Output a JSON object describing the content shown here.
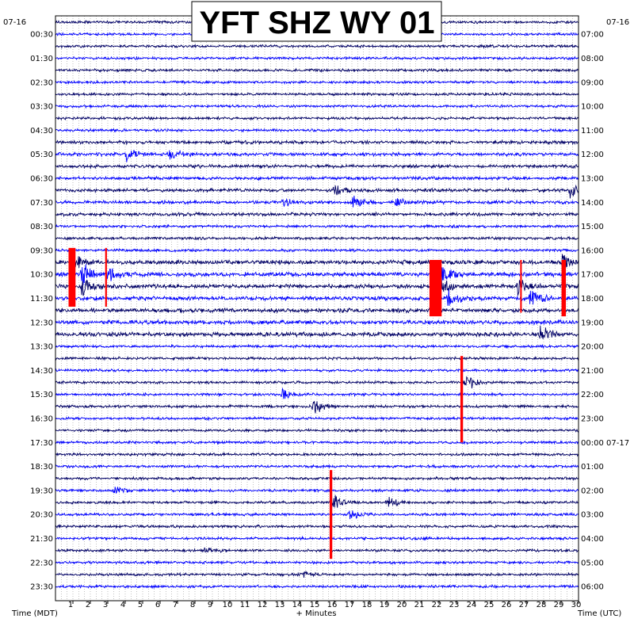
{
  "chart_data": {
    "type": "line",
    "title": "YFT SHZ WY 01",
    "date_left": "07-16",
    "date_right": "07-16",
    "xlabel": "+ Minutes",
    "xlabel_left": "Time (MDT)",
    "xlabel_right": "Time (UTC)",
    "xlim": [
      0,
      30
    ],
    "x_ticks": [
      "1",
      "2",
      "3",
      "4",
      "5",
      "6",
      "7",
      "8",
      "9",
      "10",
      "11",
      "12",
      "13",
      "14",
      "15",
      "16",
      "17",
      "18",
      "19",
      "20",
      "21",
      "22",
      "23",
      "24",
      "25",
      "26",
      "27",
      "28",
      "29",
      "30"
    ],
    "left_labels": [
      "00:30",
      "01:30",
      "02:30",
      "03:30",
      "04:30",
      "05:30",
      "06:30",
      "07:30",
      "08:30",
      "09:30",
      "10:30",
      "11:30",
      "12:30",
      "13:30",
      "14:30",
      "15:30",
      "16:30",
      "17:30",
      "18:30",
      "19:30",
      "20:30",
      "21:30",
      "22:30",
      "23:30"
    ],
    "right_labels": [
      "07:00",
      "08:00",
      "09:00",
      "10:00",
      "11:00",
      "12:00",
      "13:00",
      "14:00",
      "15:00",
      "16:00",
      "17:00",
      "18:00",
      "19:00",
      "20:00",
      "21:00",
      "22:00",
      "23:00",
      "00:00 07-17",
      "01:00",
      "02:00",
      "03:00",
      "04:00",
      "05:00",
      "06:00"
    ],
    "trace_count": 48,
    "trace_colors": [
      "#000066",
      "#0000ff"
    ],
    "clip_color": "#ff0000",
    "grid": true,
    "events": [
      {
        "trace": 11,
        "minute": 4.0,
        "amp": 10
      },
      {
        "trace": 11,
        "minute": 6.5,
        "amp": 8
      },
      {
        "trace": 14,
        "minute": 16.0,
        "amp": 9
      },
      {
        "trace": 14,
        "minute": 29.5,
        "amp": 12
      },
      {
        "trace": 15,
        "minute": 13.0,
        "amp": 8
      },
      {
        "trace": 15,
        "minute": 17.0,
        "amp": 10
      },
      {
        "trace": 15,
        "minute": 19.5,
        "amp": 7
      },
      {
        "trace": 20,
        "minute": 1.0,
        "amp": 13
      },
      {
        "trace": 20,
        "minute": 29.0,
        "amp": 12
      },
      {
        "trace": 21,
        "minute": 1.5,
        "amp": 18
      },
      {
        "trace": 21,
        "minute": 3.0,
        "amp": 12
      },
      {
        "trace": 21,
        "minute": 22.0,
        "amp": 18
      },
      {
        "trace": 22,
        "minute": 1.5,
        "amp": 16
      },
      {
        "trace": 22,
        "minute": 22.0,
        "amp": 18
      },
      {
        "trace": 22,
        "minute": 26.5,
        "amp": 12
      },
      {
        "trace": 23,
        "minute": 27.2,
        "amp": 14
      },
      {
        "trace": 23,
        "minute": 22.5,
        "amp": 14
      },
      {
        "trace": 26,
        "minute": 27.8,
        "amp": 12
      },
      {
        "trace": 30,
        "minute": 23.5,
        "amp": 14
      },
      {
        "trace": 31,
        "minute": 13.0,
        "amp": 8
      },
      {
        "trace": 32,
        "minute": 14.8,
        "amp": 14
      },
      {
        "trace": 39,
        "minute": 3.3,
        "amp": 7
      },
      {
        "trace": 40,
        "minute": 15.8,
        "amp": 14
      },
      {
        "trace": 40,
        "minute": 19.0,
        "amp": 10
      },
      {
        "trace": 41,
        "minute": 16.8,
        "amp": 8
      },
      {
        "trace": 44,
        "minute": 8.5,
        "amp": 6
      },
      {
        "trace": 46,
        "minute": 14.2,
        "amp": 6
      }
    ],
    "clips": [
      {
        "minute": 0.95,
        "trace_start": 19,
        "trace_end": 23.5,
        "width_min": 0.4
      },
      {
        "minute": 2.9,
        "trace_start": 19,
        "trace_end": 23.5,
        "width_min": 0.1
      },
      {
        "minute": 21.8,
        "trace_start": 20,
        "trace_end": 24.3,
        "width_min": 0.7
      },
      {
        "minute": 26.7,
        "trace_start": 20,
        "trace_end": 24,
        "width_min": 0.05
      },
      {
        "minute": 29.15,
        "trace_start": 20,
        "trace_end": 24.3,
        "width_min": 0.25
      },
      {
        "minute": 23.3,
        "trace_start": 28,
        "trace_end": 34.8,
        "width_min": 0.15
      },
      {
        "minute": 15.8,
        "trace_start": 37.5,
        "trace_end": 44.5,
        "width_min": 0.15
      }
    ]
  }
}
